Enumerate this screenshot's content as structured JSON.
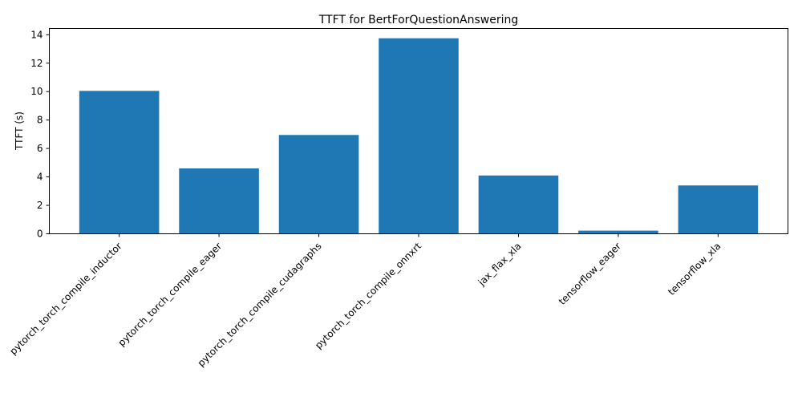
{
  "chart_data": {
    "type": "bar",
    "title": "TTFT for BertForQuestionAnswering",
    "xlabel": "",
    "ylabel": "TTFT (s)",
    "categories": [
      "pytorch_torch_compile_inductor",
      "pytorch_torch_compile_eager",
      "pytorch_torch_compile_cudagraphs",
      "pytorch_torch_compile_onnxrt",
      "jax_flax_xla",
      "tensorflow_eager",
      "tensorflow_xla"
    ],
    "values": [
      10.05,
      4.6,
      6.95,
      13.75,
      4.1,
      0.22,
      3.4
    ],
    "ylim": [
      0,
      14.44
    ],
    "yticks": [
      0,
      2,
      4,
      6,
      8,
      10,
      12,
      14
    ],
    "bar_color": "#1f77b4",
    "grid": false,
    "legend": "none",
    "xtick_rotation": 45
  }
}
